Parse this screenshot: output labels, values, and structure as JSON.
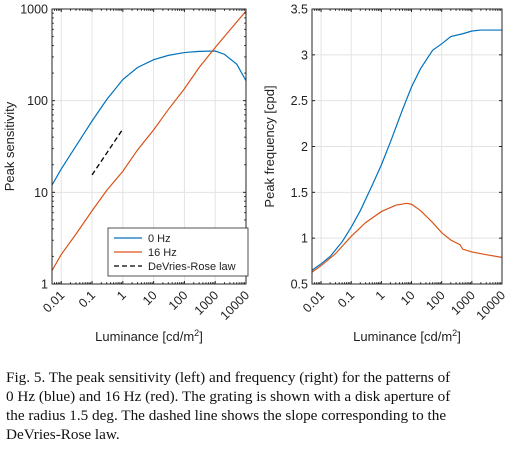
{
  "chart_data": [
    {
      "type": "line",
      "title": "",
      "xlabel": "Luminance [cd/m^2]",
      "ylabel": "Peak sensitivity",
      "xscale": "log",
      "yscale": "log",
      "xlim": [
        0.005,
        10000
      ],
      "ylim": [
        1,
        1000
      ],
      "grid": true,
      "x_ticks": [
        "0.01",
        "0.1",
        "1",
        "10",
        "100",
        "1000",
        "10000"
      ],
      "y_ticks": [
        "1",
        "10",
        "100",
        "1000"
      ],
      "legend_position": "bottom-right",
      "series": [
        {
          "name": "0 Hz",
          "color": "#0072BD",
          "style": "solid",
          "x": [
            0.005,
            0.01,
            0.03,
            0.1,
            0.3,
            1,
            3,
            10,
            30,
            100,
            300,
            1000,
            2000,
            5000,
            10000
          ],
          "y": [
            12,
            18,
            32,
            60,
            103,
            170,
            230,
            280,
            312,
            335,
            345,
            348,
            320,
            250,
            165
          ]
        },
        {
          "name": "16 Hz",
          "color": "#D95319",
          "style": "solid",
          "x": [
            0.005,
            0.01,
            0.03,
            0.1,
            0.3,
            1,
            3,
            10,
            30,
            100,
            300,
            1000,
            3000,
            10000
          ],
          "y": [
            1.4,
            2.1,
            3.5,
            6.3,
            10.5,
            17,
            29,
            48,
            80,
            135,
            230,
            380,
            590,
            950
          ]
        },
        {
          "name": "DeVries-Rose law",
          "color": "#000000",
          "style": "dashed",
          "x": [
            0.1,
            1
          ],
          "y": [
            15.5,
            49
          ]
        }
      ]
    },
    {
      "type": "line",
      "title": "",
      "xlabel": "Luminance [cd/m^2]",
      "ylabel": "Peak frequency [cpd]",
      "xscale": "log",
      "yscale": "linear",
      "xlim": [
        0.005,
        10000
      ],
      "ylim": [
        0.5,
        3.5
      ],
      "grid": true,
      "x_ticks": [
        "0.01",
        "0.1",
        "1",
        "10",
        "100",
        "1000",
        "10000"
      ],
      "y_ticks": [
        "0.5",
        "1",
        "1.5",
        "2",
        "2.5",
        "3",
        "3.5"
      ],
      "series": [
        {
          "color": "#0072BD",
          "style": "solid",
          "x": [
            0.005,
            0.01,
            0.02,
            0.05,
            0.1,
            0.2,
            0.5,
            1,
            2,
            5,
            10,
            20,
            50,
            100,
            200,
            500,
            1000,
            2000,
            5000,
            10000
          ],
          "y": [
            0.65,
            0.72,
            0.8,
            0.96,
            1.12,
            1.3,
            1.58,
            1.8,
            2.05,
            2.4,
            2.65,
            2.85,
            3.05,
            3.12,
            3.2,
            3.23,
            3.26,
            3.27,
            3.27,
            3.27
          ]
        },
        {
          "color": "#D95319",
          "style": "solid",
          "x": [
            0.005,
            0.01,
            0.03,
            0.1,
            0.3,
            1,
            3,
            7,
            10,
            20,
            50,
            100,
            200,
            300,
            400,
            500,
            1000,
            3000,
            10000
          ],
          "y": [
            0.63,
            0.7,
            0.83,
            1.02,
            1.17,
            1.29,
            1.36,
            1.38,
            1.37,
            1.3,
            1.17,
            1.06,
            0.98,
            0.95,
            0.93,
            0.88,
            0.85,
            0.82,
            0.79
          ]
        }
      ]
    }
  ],
  "caption": {
    "line1": "Fig. 5.  The peak sensitivity (left) and frequency (right) for the patterns of",
    "line2": "0 Hz (blue) and 16 Hz (red). The grating is shown with a disk aperture of",
    "line3": "the radius 1.5 deg. The dashed line shows the slope corresponding to the",
    "line4": "DeVries-Rose law."
  }
}
